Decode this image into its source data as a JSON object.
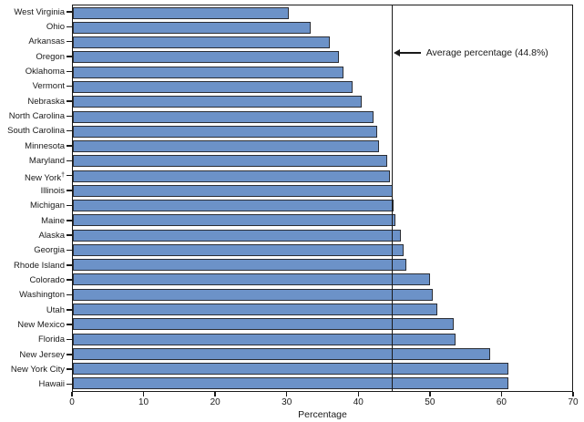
{
  "chart_data": {
    "type": "bar",
    "orientation": "horizontal",
    "xlabel": "Percentage",
    "xlim": [
      0,
      70
    ],
    "xticks": [
      0,
      10,
      20,
      30,
      40,
      50,
      60,
      70
    ],
    "grid": false,
    "legend_position": "none",
    "categories": [
      "West Virginia",
      "Ohio",
      "Arkansas",
      "Oregon",
      "Oklahoma",
      "Vermont",
      "Nebraska",
      "North Carolina",
      "South Carolina",
      "Minnesota",
      "Maryland",
      "New York†",
      "Illinois",
      "Michigan",
      "Maine",
      "Alaska",
      "Georgia",
      "Rhode Island",
      "Colorado",
      "Washington",
      "Utah",
      "New Mexico",
      "Florida",
      "New Jersey",
      "New York City",
      "Hawaii"
    ],
    "values": [
      30.3,
      33.3,
      36.0,
      37.3,
      38.0,
      39.2,
      40.5,
      42.2,
      42.7,
      42.9,
      44.1,
      44.5,
      44.8,
      44.9,
      45.2,
      46.0,
      46.4,
      46.7,
      50.1,
      50.4,
      51.1,
      53.4,
      53.6,
      58.5,
      61.0,
      61.1
    ],
    "average_line": {
      "value": 44.8,
      "label": "Average percentage (44.8%)"
    },
    "colors": {
      "bar_fill": "#6c92c8",
      "bar_border": "#2b2e35",
      "axis": "#1a1a1a"
    }
  }
}
